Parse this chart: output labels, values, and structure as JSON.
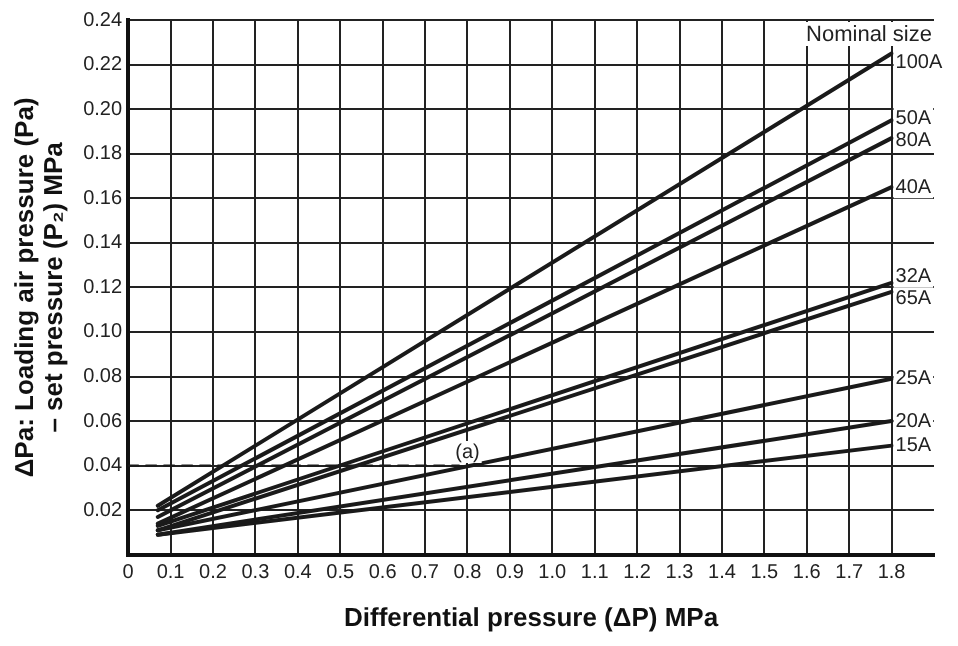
{
  "chart_data": {
    "type": "line",
    "xlabel": "Differential pressure (ΔP) MPa",
    "ylabel": "ΔPa: Loading air pressure (Pa)\n– set pressure (P₂) MPa",
    "legend_title": "Nominal size",
    "xlim": [
      0,
      1.9
    ],
    "ylim": [
      0,
      0.24
    ],
    "xticks": [
      0,
      0.1,
      0.2,
      0.3,
      0.4,
      0.5,
      0.6,
      0.7,
      0.8,
      0.9,
      {
        "value": 1,
        "label": "1.0"
      },
      1.1,
      1.2,
      1.3,
      1.4,
      1.5,
      1.6,
      1.7,
      1.8
    ],
    "yticks": [
      0.02,
      0.04,
      0.06,
      0.08,
      {
        "value": 0.1,
        "label": "0.10"
      },
      0.12,
      0.14,
      0.16,
      0.18,
      {
        "value": 0.2,
        "label": "0.20"
      },
      0.22,
      0.24
    ],
    "grid": true,
    "legend": false,
    "marker": "none",
    "line_style": "solid",
    "series": [
      {
        "name": "100A",
        "color": "#1a1a1a",
        "x": [
          0.07,
          1.8
        ],
        "values": [
          0.022,
          0.225
        ]
      },
      {
        "name": "50A",
        "color": "#1a1a1a",
        "x": [
          0.07,
          1.8
        ],
        "values": [
          0.02,
          0.195
        ]
      },
      {
        "name": "80A",
        "color": "#1a1a1a",
        "x": [
          0.07,
          1.8
        ],
        "values": [
          0.017,
          0.187
        ]
      },
      {
        "name": "40A",
        "color": "#1a1a1a",
        "x": [
          0.07,
          1.8
        ],
        "values": [
          0.014,
          0.165
        ]
      },
      {
        "name": "32A",
        "color": "#1a1a1a",
        "x": [
          0.07,
          1.8
        ],
        "values": [
          0.013,
          0.122
        ]
      },
      {
        "name": "65A",
        "color": "#1a1a1a",
        "x": [
          0.07,
          1.8
        ],
        "values": [
          0.011,
          0.118
        ]
      },
      {
        "name": "25A",
        "color": "#1a1a1a",
        "x": [
          0.07,
          1.8
        ],
        "values": [
          0.011,
          0.079
        ]
      },
      {
        "name": "20A",
        "color": "#1a1a1a",
        "x": [
          0.07,
          1.8
        ],
        "values": [
          0.009,
          0.06
        ]
      },
      {
        "name": "15A",
        "color": "#1a1a1a",
        "x": [
          0.07,
          1.8
        ],
        "values": [
          0.009,
          0.049
        ]
      },
      {
        "color": "#1a1a1a",
        "line_style": "dashed",
        "x": [
          0,
          0.78
        ],
        "values": [
          0.04,
          0.04
        ]
      }
    ],
    "annotations": [
      {
        "text": "(a)",
        "x": 0.8,
        "y": 0.043
      }
    ]
  }
}
